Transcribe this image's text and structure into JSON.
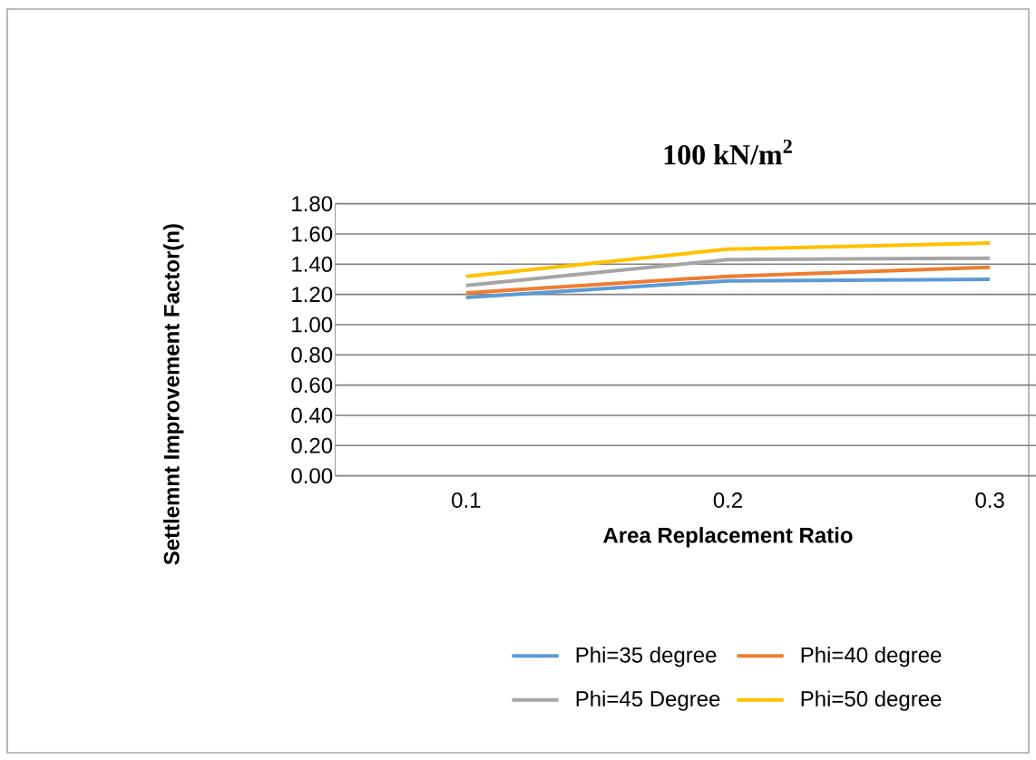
{
  "chart_data": {
    "type": "line",
    "title": "100 kN/m$^{2}$",
    "xlabel": "Area Replacement Ratio",
    "ylabel": "Settlemnt Improvement Factor(n)",
    "categories": [
      "0.1",
      "0.2",
      "0.3"
    ],
    "series": [
      {
        "name": "Phi=35 degree",
        "color": "#5b9bd5",
        "values": [
          1.18,
          1.29,
          1.3
        ]
      },
      {
        "name": "Phi=40 degree",
        "color": "#ed7d31",
        "values": [
          1.21,
          1.32,
          1.38
        ]
      },
      {
        "name": "Phi=45 Degree",
        "color": "#a5a5a5",
        "values": [
          1.26,
          1.43,
          1.44
        ]
      },
      {
        "name": "Phi=50 degree",
        "color": "#ffc000",
        "values": [
          1.32,
          1.5,
          1.54
        ]
      }
    ],
    "ylim": [
      0,
      1.8
    ],
    "yticks": [
      {
        "value": 0,
        "label": "0.00"
      },
      {
        "value": 0.2,
        "label": "0.20"
      },
      {
        "value": 0.4,
        "label": "0.40"
      },
      {
        "value": 0.6,
        "label": "0.60"
      },
      {
        "value": 0.8,
        "label": "0.80"
      },
      {
        "value": 1.0,
        "label": "1.00"
      },
      {
        "value": 1.2,
        "label": "1.20"
      },
      {
        "value": 1.4,
        "label": "1.40"
      },
      {
        "value": 1.6,
        "label": "1.60"
      },
      {
        "value": 1.8,
        "label": "1.80"
      }
    ],
    "grid": "y",
    "legend": "bottom",
    "marker": "none",
    "line_style": "solid"
  }
}
